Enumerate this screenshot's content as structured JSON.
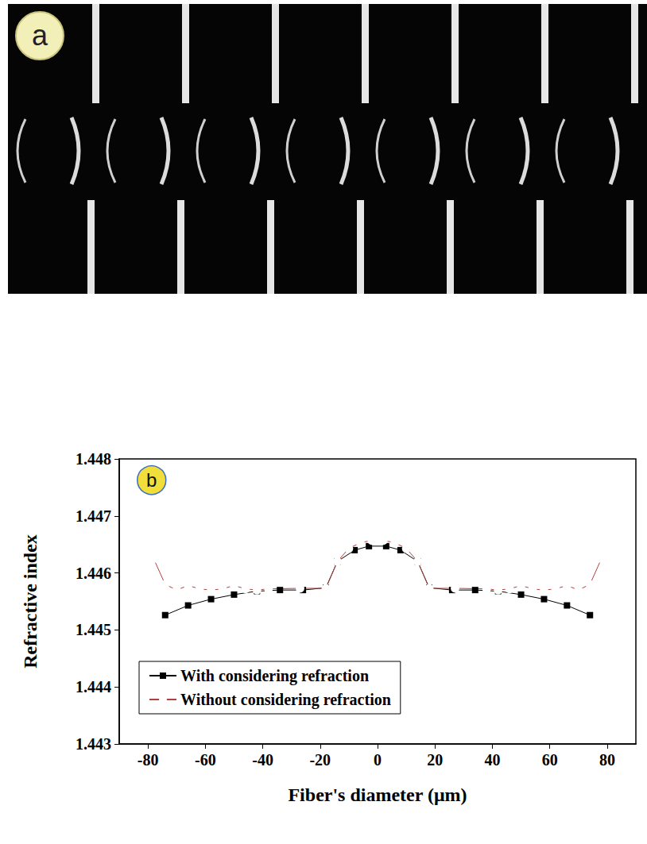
{
  "image_panel": {
    "label": "a"
  },
  "chart_data": {
    "type": "line",
    "panel_label": "b",
    "xlabel": "Fiber's diameter (μm)",
    "ylabel": "Refractive index",
    "xlim": [
      -90,
      90
    ],
    "xticks": [
      -80,
      -60,
      -40,
      -20,
      0,
      20,
      40,
      60,
      80
    ],
    "ylim": [
      1.443,
      1.448
    ],
    "yticks": [
      1.443,
      1.444,
      1.445,
      1.446,
      1.447,
      1.448
    ],
    "grid": false,
    "legend": "lower left",
    "series": [
      {
        "name": "With considering refraction",
        "color": "#000000",
        "marker": "square",
        "line_style": "solid",
        "x": [
          -74,
          -66,
          -58,
          -50,
          -42,
          -34,
          -26,
          -18,
          -14,
          -8,
          -3,
          3,
          8,
          14,
          18,
          26,
          34,
          42,
          50,
          58,
          66,
          74
        ],
        "values": [
          1.44526,
          1.44543,
          1.44554,
          1.44562,
          1.44568,
          1.4457,
          1.4457,
          1.44574,
          1.4462,
          1.4464,
          1.44647,
          1.44647,
          1.4464,
          1.4462,
          1.44574,
          1.4457,
          1.4457,
          1.44568,
          1.44562,
          1.44554,
          1.44543,
          1.44526
        ]
      },
      {
        "name": "Without considering refraction",
        "color": "#b0413e",
        "marker": "open_circle",
        "line_style": "solid",
        "x": [
          -78,
          -74,
          -70,
          -66,
          -62,
          -58,
          -54,
          -50,
          -46,
          -42,
          -38,
          -27,
          -18,
          -14,
          -10,
          -6,
          -2,
          0,
          2,
          6,
          10,
          14,
          18,
          27,
          38,
          42,
          46,
          50,
          54,
          58,
          62,
          66,
          70,
          74,
          78
        ],
        "values": [
          1.44625,
          1.4458,
          1.4457,
          1.44578,
          1.44572,
          1.4457,
          1.44572,
          1.44578,
          1.44572,
          1.4457,
          1.44572,
          1.44573,
          1.44573,
          1.4462,
          1.44643,
          1.44653,
          1.44657,
          1.4466,
          1.44657,
          1.44653,
          1.44643,
          1.4462,
          1.44573,
          1.44573,
          1.44572,
          1.4457,
          1.44572,
          1.44578,
          1.44572,
          1.4457,
          1.44572,
          1.44578,
          1.4457,
          1.4458,
          1.44625
        ]
      }
    ]
  }
}
